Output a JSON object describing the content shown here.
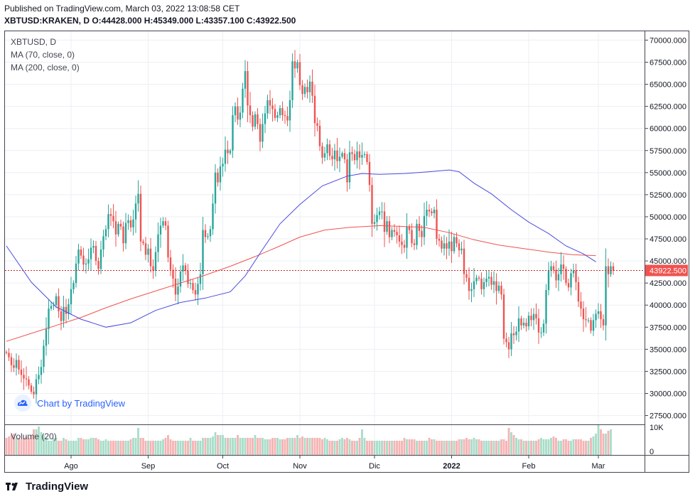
{
  "header": {
    "published": "Published on TradingView.com, March 03, 2022 13:08:58 CET",
    "symbol_line": "XBTUSD:KRAKEN, D",
    "open_label": "O:",
    "open": "44428.000",
    "high_label": "H:",
    "high": "45349.000",
    "low_label": "L:",
    "low": "43357.100",
    "close_label": "C:",
    "close": "43922.500"
  },
  "legend": {
    "symbol": "XBTUSD, D",
    "ma70": "MA (70, close, 0)",
    "ma200": "MA (200, close, 0)",
    "volume": "Volume (20)"
  },
  "watermark": {
    "text": "Chart by TradingView"
  },
  "footer": {
    "brand": "TradingView"
  },
  "colors": {
    "up": "#26a69a",
    "down": "#ef5350",
    "up_vol": "#a8dcc9",
    "down_vol": "#f6b3b3",
    "ma70": "#4a4ae0",
    "ma200": "#ef5350",
    "price_line": "#c62828",
    "grid": "#eceff3"
  },
  "chart_data": {
    "type": "candlestick",
    "symbol": "XBTUSD:KRAKEN",
    "interval": "D",
    "ylim": [
      26500,
      71000
    ],
    "price_ticks": [
      "70000.000",
      "67500.000",
      "65000.000",
      "62500.000",
      "60000.000",
      "57500.000",
      "55000.000",
      "52500.000",
      "50000.000",
      "47500.000",
      "45000.000",
      "42500.000",
      "40000.000",
      "37500.000",
      "35000.000",
      "32500.000",
      "30000.000",
      "27500.000"
    ],
    "x_labels": [
      {
        "label": "Ago",
        "index": 26
      },
      {
        "label": "Sep",
        "index": 57
      },
      {
        "label": "Oct",
        "index": 87
      },
      {
        "label": "Nov",
        "index": 118
      },
      {
        "label": "Dic",
        "index": 148
      },
      {
        "label": "2022",
        "index": 179
      },
      {
        "label": "Feb",
        "index": 210
      },
      {
        "label": "Mar",
        "index": 238
      }
    ],
    "last_price": 43922.5,
    "last_price_label": "43922.500",
    "volume_axis": {
      "ylim": [
        0,
        10500
      ],
      "ticks": [
        "10K",
        "0"
      ]
    },
    "start_price": 34700,
    "closes": [
      34600,
      34100,
      33200,
      32900,
      33800,
      32700,
      32100,
      31700,
      31600,
      30900,
      30200,
      29900,
      31600,
      32100,
      33000,
      35400,
      37300,
      39600,
      39900,
      40000,
      41000,
      39300,
      38200,
      39800,
      39000,
      40100,
      41800,
      42500,
      44700,
      46300,
      45600,
      44600,
      44700,
      45200,
      46500,
      46700,
      45000,
      44100,
      46300,
      47800,
      48600,
      50300,
      50100,
      49500,
      48000,
      49200,
      48900,
      47000,
      49300,
      49600,
      48800,
      49700,
      51500,
      52600,
      47200,
      47000,
      45700,
      46400,
      44400,
      43900,
      46000,
      48000,
      49000,
      49500,
      49000,
      45400,
      44000,
      43000,
      41200,
      42100,
      43800,
      44500,
      43900,
      42400,
      42500,
      41700,
      41200,
      42400,
      43500,
      48500,
      47700,
      47800,
      48600,
      51500,
      55000,
      53900,
      55700,
      56000,
      57600,
      57200,
      57500,
      61500,
      62500,
      61000,
      61800,
      64500,
      66500,
      62600,
      61500,
      60200,
      61600,
      60500,
      58500,
      60500,
      61700,
      63200,
      62600,
      62200,
      61200,
      61500,
      62300,
      61500,
      61400,
      60900,
      63200,
      67600,
      66800,
      67500,
      64900,
      63900,
      64700,
      64100,
      65300,
      63700,
      60600,
      60300,
      58000,
      56700,
      57200,
      58200,
      56900,
      56500,
      57500,
      56300,
      56800,
      57200,
      56500,
      53900,
      57300,
      57100,
      56400,
      57400,
      56700,
      57000,
      57100,
      56200,
      53600,
      49200,
      49400,
      50200,
      50600,
      50600,
      48300,
      49500,
      47700,
      48500,
      48300,
      47900,
      47200,
      46800,
      46500,
      48900,
      48500,
      47000,
      46800,
      49200,
      48400,
      47700,
      50100,
      50800,
      50600,
      50400,
      50800,
      47500,
      47300,
      46400,
      47000,
      46400,
      47200,
      46100,
      47700,
      47000,
      46200,
      46400,
      43500,
      43100,
      41600,
      41800,
      42700,
      43100,
      43000,
      41800,
      42600,
      43000,
      43200,
      42300,
      42700,
      41600,
      42200,
      41200,
      36200,
      35800,
      35000,
      36800,
      36600,
      37000,
      38500,
      37700,
      38000,
      37600,
      38800,
      38300,
      39000,
      38500,
      36900,
      36900,
      37900,
      41700,
      43900,
      44400,
      44000,
      42800,
      43500,
      44600,
      44100,
      42500,
      42000,
      43600,
      43900,
      42600,
      40400,
      39600,
      38400,
      38300,
      38300,
      37100,
      38300,
      39000,
      39300,
      38400,
      37700,
      44400,
      43500,
      44400,
      43922.5
    ],
    "volumes": [
      6,
      6.5,
      7,
      7.5,
      6,
      6,
      5.5,
      6,
      6.5,
      6,
      7,
      9,
      9,
      10,
      8,
      7,
      6,
      5,
      5,
      6,
      6,
      5,
      5,
      6,
      5.5,
      5,
      5,
      5,
      5,
      6,
      6,
      5.5,
      5.5,
      5.5,
      6,
      6,
      6,
      5.5,
      5,
      5,
      5.5,
      5,
      5,
      5,
      5,
      5,
      5,
      5,
      5,
      5,
      5.5,
      6,
      6,
      9.5,
      6,
      6,
      5,
      5,
      5,
      5,
      5,
      5,
      5,
      5.5,
      6,
      7,
      5.5,
      5,
      5,
      5,
      5,
      5,
      5,
      5,
      6,
      5,
      5,
      5,
      5,
      6,
      6,
      6,
      6,
      6.5,
      8,
      7,
      7,
      7,
      6,
      6,
      6,
      6,
      6,
      7,
      6,
      6,
      6,
      6,
      6,
      6,
      7,
      6,
      6,
      6,
      5.5,
      5.5,
      5.5,
      6,
      6,
      6,
      5.5,
      5.5,
      5.5,
      6,
      6,
      6,
      6,
      7,
      6,
      6.5,
      6,
      6,
      6,
      6,
      6,
      6,
      6,
      5.5,
      6,
      5.5,
      5,
      5,
      5,
      5,
      5.5,
      6,
      5.5,
      6,
      5.5,
      5,
      5,
      5,
      6,
      9,
      6,
      5,
      5,
      5,
      5,
      5,
      5,
      5,
      5,
      5,
      5,
      5,
      5,
      5,
      5,
      5,
      6,
      5.5,
      5.5,
      5.5,
      5.5,
      5,
      5,
      5,
      5,
      5,
      6,
      5.5,
      5.5,
      5,
      5,
      5,
      5,
      5,
      5,
      5,
      5,
      5,
      5.5,
      5.5,
      5.5,
      6,
      5.5,
      5.5,
      6,
      5.5,
      5.5,
      5,
      5,
      5,
      5,
      5,
      5,
      5,
      5,
      5.5,
      5.5,
      5,
      9.5,
      8,
      7,
      6,
      5.5,
      5.5,
      5,
      5,
      5,
      5,
      5,
      5,
      5.5,
      6,
      5.5,
      5.5,
      5.5,
      6,
      6.5,
      6,
      5,
      5,
      5.5,
      5.5,
      5,
      5,
      5.5,
      5.5,
      5.5,
      5.5,
      5,
      5,
      5,
      6,
      6.5,
      7.5,
      10.5,
      9,
      7.5,
      7.5,
      8.5,
      9
    ],
    "ma70": {
      "name": "MA (70, close, 0)",
      "points": [
        [
          0,
          46700
        ],
        [
          10,
          42600
        ],
        [
          20,
          39800
        ],
        [
          30,
          38400
        ],
        [
          40,
          37500
        ],
        [
          50,
          38000
        ],
        [
          60,
          39400
        ],
        [
          70,
          40300
        ],
        [
          80,
          40800
        ],
        [
          90,
          41500
        ],
        [
          96,
          43300
        ],
        [
          103,
          46300
        ],
        [
          110,
          49200
        ],
        [
          118,
          51400
        ],
        [
          127,
          53500
        ],
        [
          137,
          54600
        ],
        [
          143,
          54900
        ],
        [
          150,
          54800
        ],
        [
          160,
          54900
        ],
        [
          170,
          55100
        ],
        [
          178,
          55300
        ],
        [
          182,
          55100
        ],
        [
          188,
          53800
        ],
        [
          195,
          52600
        ],
        [
          203,
          50800
        ],
        [
          210,
          49400
        ],
        [
          218,
          48100
        ],
        [
          225,
          46700
        ],
        [
          232,
          45800
        ],
        [
          237,
          44900
        ]
      ]
    },
    "ma200": {
      "name": "MA (200, close, 0)",
      "points": [
        [
          0,
          35900
        ],
        [
          10,
          36800
        ],
        [
          20,
          37700
        ],
        [
          30,
          38600
        ],
        [
          40,
          39700
        ],
        [
          50,
          40700
        ],
        [
          60,
          41600
        ],
        [
          70,
          42500
        ],
        [
          80,
          43400
        ],
        [
          90,
          44400
        ],
        [
          100,
          45500
        ],
        [
          110,
          46700
        ],
        [
          118,
          47700
        ],
        [
          128,
          48500
        ],
        [
          138,
          48800
        ],
        [
          150,
          49000
        ],
        [
          160,
          48900
        ],
        [
          168,
          48800
        ],
        [
          178,
          48200
        ],
        [
          188,
          47400
        ],
        [
          198,
          46800
        ],
        [
          208,
          46400
        ],
        [
          218,
          46000
        ],
        [
          228,
          45700
        ],
        [
          237,
          45600
        ]
      ]
    }
  }
}
